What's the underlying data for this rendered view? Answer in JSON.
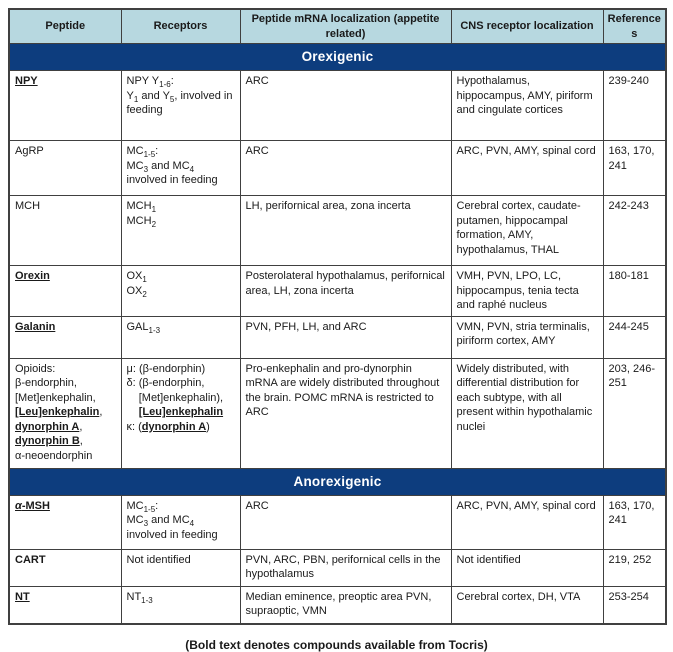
{
  "colors": {
    "band-bg": "#0d3d7e",
    "header-bg": "#b7d8e0",
    "border": "#404040",
    "text": "#1a1a1a"
  },
  "table": {
    "columns": [
      "Peptide",
      "Receptors",
      "Peptide mRNA localization (appetite related)",
      "CNS receptor localization",
      "References"
    ],
    "sections": [
      {
        "title": "Orexigenic",
        "rows": [
          {
            "peptide": [
              {
                "t": "NPY",
                "b": 1,
                "u": 1
              }
            ],
            "receptors": [
              {
                "t": "NPY Y"
              },
              {
                "t": "1-6",
                "sub": 1
              },
              {
                "t": ":"
              },
              {
                "br": 1
              },
              {
                "t": "Y"
              },
              {
                "t": "1",
                "sub": 1
              },
              {
                "t": " and Y"
              },
              {
                "t": "5",
                "sub": 1
              },
              {
                "t": ", involved in feeding"
              }
            ],
            "mrna": [
              {
                "t": "ARC"
              }
            ],
            "cns": [
              {
                "t": "Hypothalamus, hippocampus, AMY, piriform and cingulate cortices"
              }
            ],
            "refs": [
              {
                "t": "239-240"
              }
            ]
          },
          {
            "peptide": [
              {
                "t": "AgRP"
              }
            ],
            "receptors": [
              {
                "t": "MC"
              },
              {
                "t": "1-5",
                "sub": 1
              },
              {
                "t": ":"
              },
              {
                "br": 1
              },
              {
                "t": "MC"
              },
              {
                "t": "3",
                "sub": 1
              },
              {
                "t": " and MC"
              },
              {
                "t": "4",
                "sub": 1
              },
              {
                "t": " involved in feeding"
              }
            ],
            "mrna": [
              {
                "t": "ARC"
              }
            ],
            "cns": [
              {
                "t": "ARC, PVN, AMY, spinal cord"
              }
            ],
            "refs": [
              {
                "t": "163, 170, 241"
              }
            ]
          },
          {
            "peptide": [
              {
                "t": "MCH"
              }
            ],
            "receptors": [
              {
                "t": "MCH"
              },
              {
                "t": "1",
                "sub": 1
              },
              {
                "br": 1
              },
              {
                "t": "MCH"
              },
              {
                "t": "2",
                "sub": 1
              }
            ],
            "mrna": [
              {
                "t": "LH, perifornical area, zona incerta"
              }
            ],
            "cns": [
              {
                "t": "Cerebral cortex, caudate-putamen, hippocampal formation, AMY, hypothalamus, THAL"
              }
            ],
            "refs": [
              {
                "t": "242-243"
              }
            ]
          },
          {
            "peptide": [
              {
                "t": "Orexin",
                "b": 1,
                "u": 1
              }
            ],
            "receptors": [
              {
                "t": "OX"
              },
              {
                "t": "1",
                "sub": 1
              },
              {
                "br": 1
              },
              {
                "t": "OX"
              },
              {
                "t": "2",
                "sub": 1
              }
            ],
            "mrna": [
              {
                "t": "Posterolateral hypothalamus, perifornical area, LH, zona incerta"
              }
            ],
            "cns": [
              {
                "t": "VMH, PVN, LPO, LC, hippocampus, tenia tecta and raphé nucleus"
              }
            ],
            "refs": [
              {
                "t": "180-181"
              }
            ]
          },
          {
            "peptide": [
              {
                "t": "Galanin",
                "b": 1,
                "u": 1
              }
            ],
            "receptors": [
              {
                "t": "GAL"
              },
              {
                "t": "1-3",
                "sub": 1
              }
            ],
            "mrna": [
              {
                "t": "PVN, PFH, LH, and ARC"
              }
            ],
            "cns": [
              {
                "t": "VMN, PVN, stria terminalis, piriform cortex, AMY"
              }
            ],
            "refs": [
              {
                "t": "244-245"
              }
            ]
          },
          {
            "peptide": [
              {
                "t": "Opioids:"
              },
              {
                "br": 1
              },
              {
                "t": "β-endorphin,"
              },
              {
                "br": 1
              },
              {
                "t": "[Met]enkephalin,"
              },
              {
                "br": 1
              },
              {
                "t": "[Leu]enkephalin",
                "b": 1,
                "u": 1
              },
              {
                "t": ","
              },
              {
                "br": 1
              },
              {
                "t": "dynorphin A",
                "b": 1,
                "u": 1
              },
              {
                "t": ","
              },
              {
                "br": 1
              },
              {
                "t": "dynorphin B",
                "b": 1,
                "u": 1
              },
              {
                "t": ","
              },
              {
                "br": 1
              },
              {
                "t": "α-neoendorphin"
              }
            ],
            "receptors": [
              {
                "t": "μ: (β-endorphin)"
              },
              {
                "br": 1
              },
              {
                "t": "δ: (β-endorphin,"
              },
              {
                "br": 1
              },
              {
                "t": "    [Met]enkephalin),"
              },
              {
                "br": 1
              },
              {
                "t": "    "
              },
              {
                "t": "[Leu]enkephalin",
                "b": 1,
                "u": 1
              },
              {
                "br": 1
              },
              {
                "t": "κ: ("
              },
              {
                "t": "dynorphin A",
                "b": 1,
                "u": 1
              },
              {
                "t": ")"
              }
            ],
            "mrna": [
              {
                "t": "Pro-enkephalin and pro-dynorphin mRNA are widely distributed throughout the brain. POMC mRNA is restricted to ARC"
              }
            ],
            "cns": [
              {
                "t": "Widely distributed, with differential distribution for each subtype, with all present within hypothalamic nuclei"
              }
            ],
            "refs": [
              {
                "t": "203, 246-251"
              }
            ]
          }
        ]
      },
      {
        "title": "Anorexigenic",
        "rows": [
          {
            "peptide": [
              {
                "t": "α",
                "b": 1,
                "u": 1,
                "i": 1
              },
              {
                "t": "-MSH",
                "b": 1,
                "u": 1
              }
            ],
            "receptors": [
              {
                "t": "MC"
              },
              {
                "t": "1-5",
                "sub": 1
              },
              {
                "t": ":"
              },
              {
                "br": 1
              },
              {
                "t": "MC"
              },
              {
                "t": "3",
                "sub": 1
              },
              {
                "t": " and MC"
              },
              {
                "t": "4",
                "sub": 1
              },
              {
                "t": " involved in feeding"
              }
            ],
            "mrna": [
              {
                "t": "ARC"
              }
            ],
            "cns": [
              {
                "t": "ARC, PVN, AMY, spinal cord"
              }
            ],
            "refs": [
              {
                "t": "163, 170, 241"
              }
            ]
          },
          {
            "peptide": [
              {
                "t": "CART",
                "b": 1
              }
            ],
            "receptors": [
              {
                "t": "Not identified"
              }
            ],
            "mrna": [
              {
                "t": "PVN, ARC, PBN, perifornical cells in the hypothalamus"
              }
            ],
            "cns": [
              {
                "t": "Not identified"
              }
            ],
            "refs": [
              {
                "t": "219, 252"
              }
            ]
          },
          {
            "peptide": [
              {
                "t": "NT",
                "b": 1,
                "u": 1
              }
            ],
            "receptors": [
              {
                "t": "NT"
              },
              {
                "t": "1-3",
                "sub": 1
              }
            ],
            "mrna": [
              {
                "t": "Median eminence, preoptic area PVN, supraoptic, VMN"
              }
            ],
            "cns": [
              {
                "t": "Cerebral cortex, DH, VTA"
              }
            ],
            "refs": [
              {
                "t": "253-254"
              }
            ]
          }
        ]
      }
    ]
  },
  "footer": "(Bold text denotes compounds available from Tocris)"
}
